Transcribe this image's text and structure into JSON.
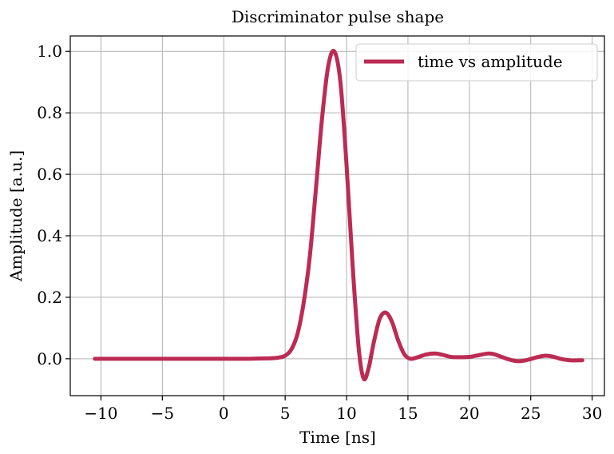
{
  "chart_data": {
    "type": "line",
    "title": "Discriminator pulse shape",
    "xlabel": "Time [ns]",
    "ylabel": "Amplitude [a.u.]",
    "xlim": [
      -12.5,
      31
    ],
    "ylim": [
      -0.12,
      1.05
    ],
    "xticks": [
      -10,
      -5,
      0,
      5,
      10,
      15,
      20,
      25,
      30
    ],
    "xtick_labels": [
      "−10",
      "−5",
      "0",
      "5",
      "10",
      "15",
      "20",
      "25",
      "30"
    ],
    "yticks": [
      0.0,
      0.2,
      0.4,
      0.6,
      0.8,
      1.0
    ],
    "ytick_labels": [
      "0.0",
      "0.2",
      "0.4",
      "0.6",
      "0.8",
      "1.0"
    ],
    "grid": true,
    "legend": {
      "position": "top-right"
    },
    "series": [
      {
        "name": "time vs amplitude",
        "color": "#bc2b53",
        "x": [
          -10.5,
          -8,
          -6,
          -4,
          -2,
          0,
          2,
          3,
          4,
          4.5,
          5,
          5.5,
          6,
          6.5,
          7,
          7.5,
          8,
          8.5,
          9,
          9.5,
          10,
          10.5,
          11,
          11.4,
          11.8,
          12.2,
          12.7,
          13.2,
          13.7,
          14.2,
          14.7,
          15.2,
          15.8,
          16.5,
          17.2,
          17.8,
          18.5,
          19.2,
          20,
          20.8,
          21.5,
          22,
          22.7,
          23.4,
          24.1,
          24.8,
          25.5,
          26.2,
          26.8,
          27.5,
          28.2,
          29.2
        ],
        "y": [
          0.0,
          0.0,
          0.0,
          0.0,
          0.0,
          0.0,
          0.0,
          0.001,
          0.002,
          0.004,
          0.01,
          0.03,
          0.08,
          0.18,
          0.33,
          0.55,
          0.78,
          0.95,
          1.0,
          0.9,
          0.63,
          0.3,
          0.03,
          -0.065,
          -0.03,
          0.05,
          0.13,
          0.15,
          0.12,
          0.06,
          0.015,
          0.0,
          0.005,
          0.014,
          0.017,
          0.013,
          0.006,
          0.005,
          0.006,
          0.012,
          0.017,
          0.015,
          0.005,
          -0.004,
          -0.008,
          -0.003,
          0.005,
          0.01,
          0.007,
          -0.001,
          -0.005,
          -0.005
        ]
      }
    ]
  }
}
